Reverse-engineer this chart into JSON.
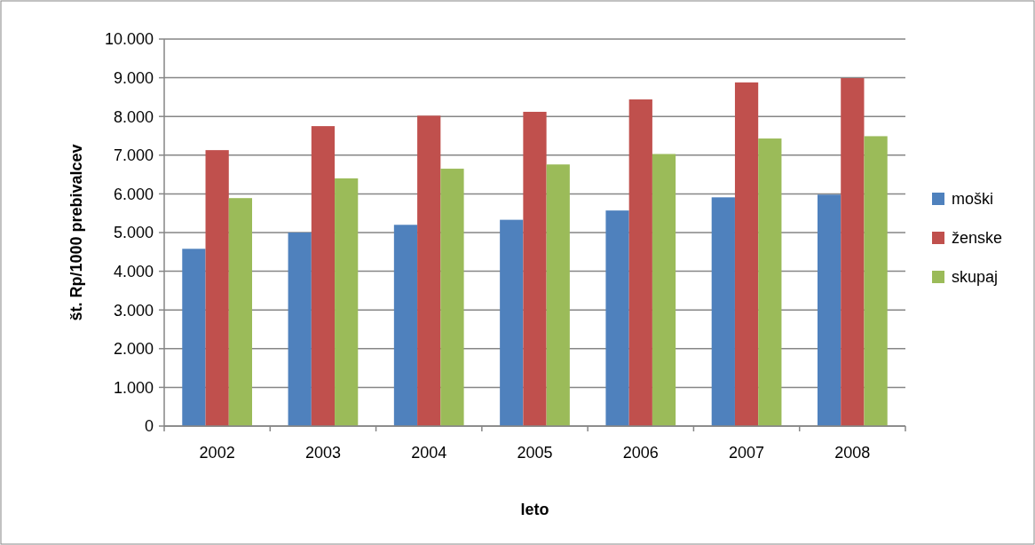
{
  "chart_data": {
    "type": "bar",
    "xlabel": "leto",
    "ylabel": "št. Rp/1000 prebivalcev",
    "categories": [
      "2002",
      "2003",
      "2004",
      "2005",
      "2006",
      "2007",
      "2008"
    ],
    "series": [
      {
        "name": "moški",
        "color": "#4f81bd",
        "values": [
          4580,
          5000,
          5200,
          5330,
          5570,
          5910,
          5980
        ]
      },
      {
        "name": "ženske",
        "color": "#c0504d",
        "values": [
          7130,
          7750,
          8020,
          8120,
          8440,
          8880,
          8990
        ]
      },
      {
        "name": "skupaj",
        "color": "#9bbb59",
        "values": [
          5890,
          6400,
          6650,
          6760,
          7030,
          7430,
          7490
        ]
      }
    ],
    "ylim": [
      0,
      10000
    ],
    "yticks": [
      {
        "value": 0,
        "label": "0"
      },
      {
        "value": 1000,
        "label": "1.000"
      },
      {
        "value": 2000,
        "label": "2.000"
      },
      {
        "value": 3000,
        "label": "3.000"
      },
      {
        "value": 4000,
        "label": "4.000"
      },
      {
        "value": 5000,
        "label": "5.000"
      },
      {
        "value": 6000,
        "label": "6.000"
      },
      {
        "value": 7000,
        "label": "7.000"
      },
      {
        "value": 8000,
        "label": "8.000"
      },
      {
        "value": 9000,
        "label": "9.000"
      },
      {
        "value": 10000,
        "label": "10.000"
      }
    ],
    "grid": "y",
    "legend": "right"
  }
}
